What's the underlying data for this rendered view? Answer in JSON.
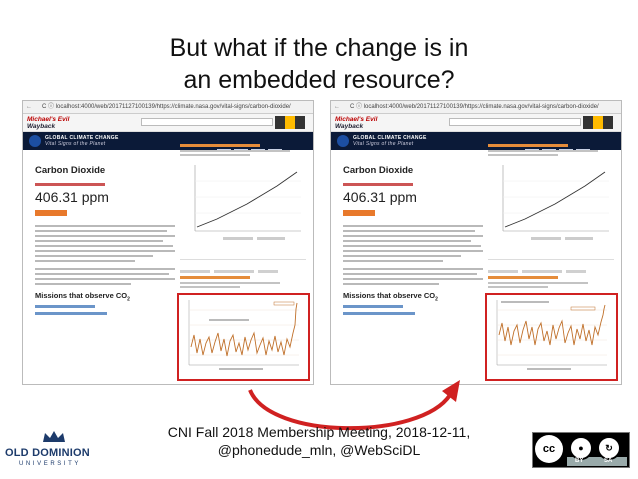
{
  "slide": {
    "title_line1": "But what if the change is in",
    "title_line2": "an embedded resource?",
    "footer_line1": "CNI Fall 2018 Membership Meeting, 2018-12-11,",
    "footer_line2": "@phonedude_mln, @WebSciDL"
  },
  "screenshots": [
    {
      "url_text": "C  ⓘ localhost:4000/web/20171127100139/https://climate.nasa.gov/vital-signs/carbon-dioxide/",
      "wayback_line1": "Michael's Evil",
      "wayback_line2": "Wayback",
      "site_title": "GLOBAL CLIMATE CHANGE",
      "site_subtitle": "Vital Signs of the Planet",
      "heading": "Carbon Dioxide",
      "value": "406.31 ppm",
      "missions_heading": "Missions that observe CO",
      "missions_sub": "2"
    },
    {
      "url_text": "C  ⓘ localhost:4000/web/20171127100139/https://climate.nasa.gov/vital-signs/carbon-dioxide/",
      "wayback_line1": "Michael's Evil",
      "wayback_line2": "Wayback",
      "site_title": "GLOBAL CLIMATE CHANGE",
      "site_subtitle": "Vital Signs of the Planet",
      "heading": "Carbon Dioxide",
      "value": "406.31 ppm",
      "missions_heading": "Missions that observe CO",
      "missions_sub": "2"
    }
  ],
  "logos": {
    "university_name": "OLD DOMINION",
    "university_sub": "UNIVERSITY",
    "cc_by": "BY",
    "cc_sa": "SA"
  },
  "colors": {
    "highlight_border": "#d02121",
    "arrow": "#d02121",
    "chart_line": "#c0702a"
  }
}
